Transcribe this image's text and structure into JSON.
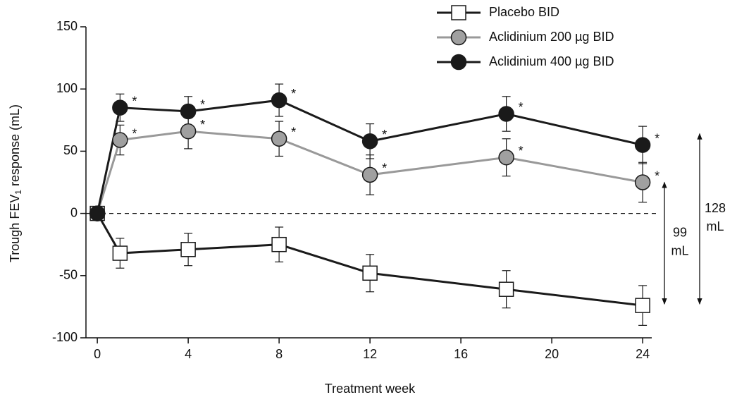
{
  "chart_data": {
    "type": "line",
    "x_label": "Treatment week",
    "y_label": [
      "Trough FEV",
      "1",
      " response (mL)"
    ],
    "xlim": [
      -0.5,
      24.4
    ],
    "xticks": [
      0,
      4,
      8,
      12,
      16,
      20,
      24
    ],
    "ylim": [
      -100,
      150
    ],
    "yticks": [
      -100,
      -50,
      0,
      50,
      100,
      150
    ],
    "significance_mark": "*",
    "series": [
      {
        "name": "Placebo BID",
        "color": "#1a1a1a",
        "marker": "square",
        "marker_fill": "#ffffff",
        "x": [
          0,
          1,
          4,
          8,
          12,
          18,
          24
        ],
        "values": [
          0,
          -32,
          -29,
          -25,
          -48,
          -61,
          -74
        ],
        "errors": [
          0,
          12,
          13,
          14,
          15,
          15,
          16
        ]
      },
      {
        "name": "Aclidinium 200 µg BID",
        "color": "#999999",
        "marker": "circle",
        "marker_fill": "#a0a0a0",
        "x": [
          0,
          1,
          4,
          8,
          12,
          18,
          24
        ],
        "values": [
          0,
          59,
          66,
          60,
          31,
          45,
          25
        ],
        "errors": [
          0,
          12,
          14,
          14,
          16,
          15,
          16
        ],
        "significant_weeks": [
          1,
          4,
          8,
          12,
          18,
          24
        ]
      },
      {
        "name": "Aclidinium 400 µg BID",
        "color": "#1a1a1a",
        "marker": "circle",
        "marker_fill": "#1a1a1a",
        "x": [
          0,
          1,
          4,
          8,
          12,
          18,
          24
        ],
        "values": [
          0,
          85,
          82,
          91,
          58,
          80,
          55
        ],
        "errors": [
          0,
          11,
          12,
          13,
          14,
          14,
          15
        ],
        "significant_weeks": [
          1,
          4,
          8,
          12,
          18,
          24
        ]
      }
    ],
    "annotations": [
      {
        "text": [
          "99",
          "mL"
        ]
      },
      {
        "text": [
          "128",
          "mL"
        ]
      }
    ]
  }
}
